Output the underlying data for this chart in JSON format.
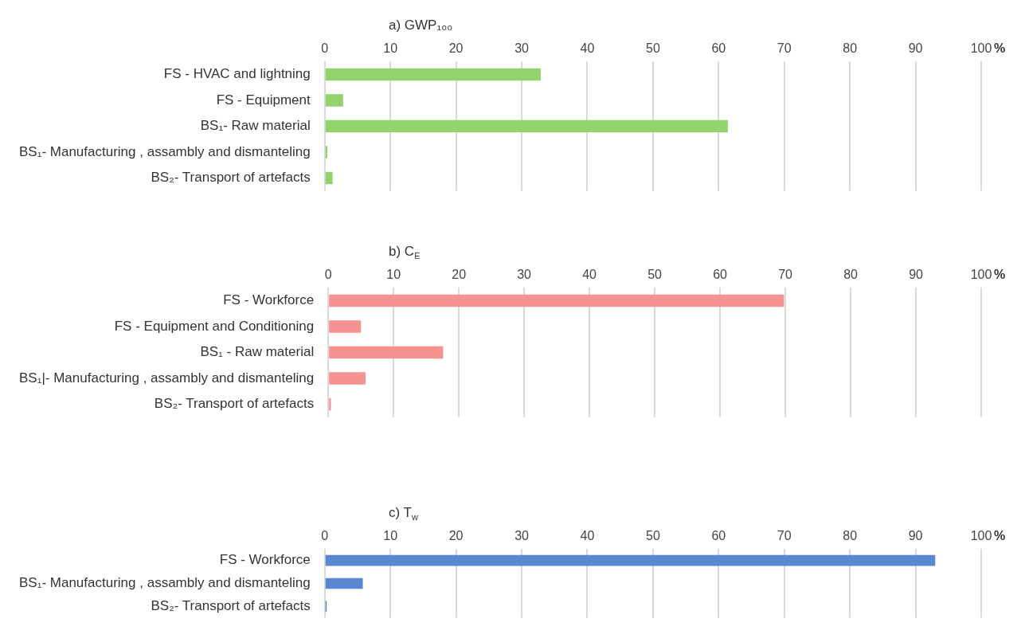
{
  "chart_data": [
    {
      "type": "bar",
      "orientation": "horizontal",
      "title": "a) GWP₁₀₀",
      "xlabel": "%",
      "categories": [
        "FS - HVAC and lightning",
        "FS - Equipment",
        "BS₁- Raw material",
        "BS₁- Manufacturing , assambly and dismanteling",
        "BS₂- Transport of artefacts"
      ],
      "values": [
        32.9,
        2.8,
        61.4,
        0.4,
        1.2
      ],
      "color": "#92d36e",
      "xlim": [
        0,
        100
      ],
      "xticks": [
        0,
        10,
        20,
        30,
        40,
        50,
        60,
        70,
        80,
        90,
        100
      ],
      "grid": "x"
    },
    {
      "type": "bar",
      "orientation": "horizontal",
      "title": "b) C$_{E}$",
      "xlabel": "%",
      "categories": [
        "FS - Workforce",
        "FS - Equipment and Conditioning",
        "BS₁ - Raw material",
        "BS₁|- Manufacturing , assambly and dismanteling",
        "BS₂- Transport of artefacts"
      ],
      "values": [
        69.8,
        5,
        17.6,
        5.7,
        0.4
      ],
      "color": "#f69292",
      "xlim": [
        0,
        100
      ],
      "xticks": [
        0,
        10,
        20,
        30,
        40,
        50,
        60,
        70,
        80,
        90,
        100
      ],
      "grid": "x"
    },
    {
      "type": "bar",
      "orientation": "horizontal",
      "title": "c) T$_{w}$",
      "xlabel": "%",
      "categories": [
        "FS - Workforce",
        "BS₁- Manufacturing , assambly and dismanteling",
        "BS₂- Transport of artefacts"
      ],
      "values": [
        93,
        5.8,
        0.3
      ],
      "color": "#5a87cf",
      "xlim": [
        0,
        100
      ],
      "xticks": [
        0,
        10,
        20,
        30,
        40,
        50,
        60,
        70,
        80,
        90,
        100
      ],
      "grid": "x"
    }
  ]
}
